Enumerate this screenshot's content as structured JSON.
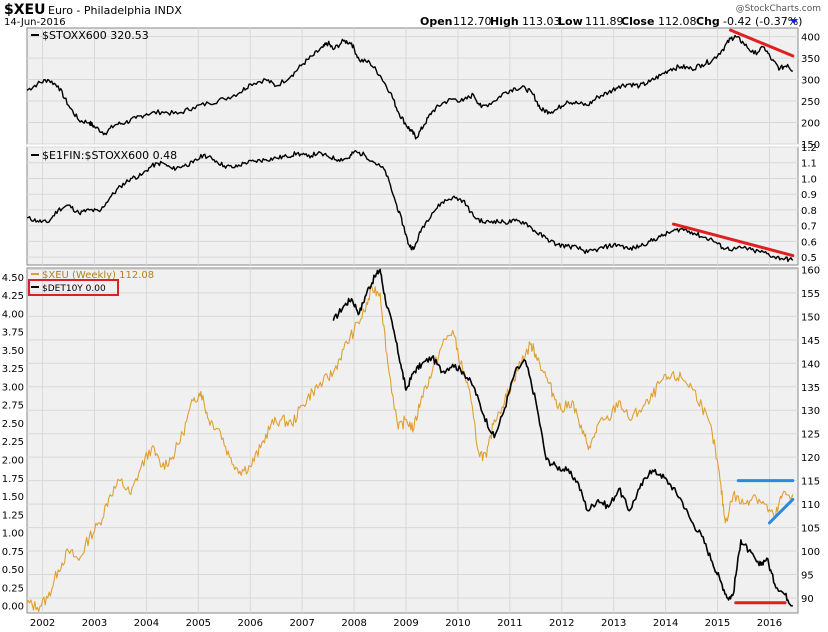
{
  "header": {
    "symbol": "$XEU",
    "name": "Euro - Philadelphia INDX",
    "date": "14-Jun-2016",
    "watermark": "@StockCharts.com",
    "open_label": "Open",
    "open": "112.70",
    "high_label": "High",
    "high": "113.03",
    "low_label": "Low",
    "low": "111.89",
    "close_label": "Close",
    "close": "112.08",
    "chg_label": "Chg",
    "chg": "-0.42 (-0.37%)",
    "chg_color": "#1a1aff"
  },
  "colors": {
    "panel_bg": "#f0f0f0",
    "grid": "#d8d8d8",
    "price_line": "#000000",
    "xeu_line": "#e0a030",
    "red_annotation": "#e02020",
    "blue_annotation": "#2a8ae0"
  },
  "chart_data": [
    {
      "type": "line",
      "panel": "top",
      "series": [
        {
          "name": "$STOXX600 320.53",
          "last": 320.53
        }
      ],
      "ylim": [
        150,
        420
      ],
      "y_ticks": [
        150,
        200,
        250,
        300,
        350,
        400
      ],
      "x_ticks": [
        "2002",
        "2003",
        "2004",
        "2005",
        "2006",
        "2007",
        "2008",
        "2009",
        "2010",
        "2011",
        "2012",
        "2013",
        "2014",
        "2015",
        "2016"
      ],
      "points": [
        [
          2001.7,
          275
        ],
        [
          2001.9,
          290
        ],
        [
          2002.1,
          300
        ],
        [
          2002.3,
          285
        ],
        [
          2002.5,
          240
        ],
        [
          2002.7,
          205
        ],
        [
          2002.9,
          200
        ],
        [
          2003.0,
          190
        ],
        [
          2003.2,
          175
        ],
        [
          2003.4,
          195
        ],
        [
          2003.6,
          200
        ],
        [
          2003.8,
          210
        ],
        [
          2004.0,
          220
        ],
        [
          2004.3,
          225
        ],
        [
          2004.6,
          220
        ],
        [
          2004.9,
          235
        ],
        [
          2005.2,
          245
        ],
        [
          2005.5,
          255
        ],
        [
          2005.8,
          270
        ],
        [
          2006.0,
          290
        ],
        [
          2006.3,
          300
        ],
        [
          2006.5,
          285
        ],
        [
          2006.8,
          310
        ],
        [
          2007.0,
          335
        ],
        [
          2007.2,
          355
        ],
        [
          2007.4,
          375
        ],
        [
          2007.5,
          385
        ],
        [
          2007.6,
          370
        ],
        [
          2007.8,
          390
        ],
        [
          2007.95,
          385
        ],
        [
          2008.1,
          345
        ],
        [
          2008.3,
          340
        ],
        [
          2008.5,
          310
        ],
        [
          2008.7,
          270
        ],
        [
          2008.85,
          225
        ],
        [
          2009.0,
          195
        ],
        [
          2009.1,
          180
        ],
        [
          2009.2,
          165
        ],
        [
          2009.35,
          195
        ],
        [
          2009.5,
          225
        ],
        [
          2009.7,
          245
        ],
        [
          2009.9,
          255
        ],
        [
          2010.1,
          250
        ],
        [
          2010.3,
          265
        ],
        [
          2010.45,
          235
        ],
        [
          2010.7,
          250
        ],
        [
          2010.9,
          270
        ],
        [
          2011.1,
          280
        ],
        [
          2011.3,
          280
        ],
        [
          2011.45,
          265
        ],
        [
          2011.6,
          230
        ],
        [
          2011.75,
          225
        ],
        [
          2011.9,
          230
        ],
        [
          2012.1,
          250
        ],
        [
          2012.3,
          245
        ],
        [
          2012.5,
          240
        ],
        [
          2012.7,
          260
        ],
        [
          2012.9,
          270
        ],
        [
          2013.1,
          285
        ],
        [
          2013.3,
          290
        ],
        [
          2013.5,
          285
        ],
        [
          2013.7,
          295
        ],
        [
          2013.9,
          310
        ],
        [
          2014.1,
          325
        ],
        [
          2014.3,
          330
        ],
        [
          2014.5,
          325
        ],
        [
          2014.7,
          335
        ],
        [
          2014.9,
          345
        ],
        [
          2015.1,
          370
        ],
        [
          2015.25,
          395
        ],
        [
          2015.35,
          400
        ],
        [
          2015.5,
          385
        ],
        [
          2015.7,
          360
        ],
        [
          2015.9,
          375
        ],
        [
          2016.05,
          345
        ],
        [
          2016.2,
          325
        ],
        [
          2016.35,
          335
        ],
        [
          2016.45,
          320.53
        ]
      ]
    },
    {
      "type": "line",
      "panel": "middle",
      "series": [
        {
          "name": "$E1FIN:$STOXX600 0.48",
          "last": 0.48
        }
      ],
      "ylim": [
        0.45,
        1.2
      ],
      "y_ticks": [
        0.5,
        0.6,
        0.7,
        0.8,
        0.9,
        1.0,
        1.1,
        1.2
      ],
      "points": [
        [
          2001.7,
          0.75
        ],
        [
          2001.9,
          0.73
        ],
        [
          2002.1,
          0.72
        ],
        [
          2002.3,
          0.8
        ],
        [
          2002.5,
          0.83
        ],
        [
          2002.7,
          0.78
        ],
        [
          2002.9,
          0.8
        ],
        [
          2003.1,
          0.79
        ],
        [
          2003.3,
          0.88
        ],
        [
          2003.5,
          0.95
        ],
        [
          2003.7,
          1.0
        ],
        [
          2003.9,
          1.02
        ],
        [
          2004.1,
          1.08
        ],
        [
          2004.3,
          1.1
        ],
        [
          2004.5,
          1.06
        ],
        [
          2004.7,
          1.08
        ],
        [
          2004.9,
          1.1
        ],
        [
          2005.1,
          1.15
        ],
        [
          2005.3,
          1.12
        ],
        [
          2005.5,
          1.08
        ],
        [
          2005.7,
          1.07
        ],
        [
          2005.9,
          1.1
        ],
        [
          2006.1,
          1.11
        ],
        [
          2006.3,
          1.12
        ],
        [
          2006.5,
          1.13
        ],
        [
          2006.7,
          1.14
        ],
        [
          2006.9,
          1.16
        ],
        [
          2007.1,
          1.14
        ],
        [
          2007.3,
          1.16
        ],
        [
          2007.5,
          1.14
        ],
        [
          2007.7,
          1.12
        ],
        [
          2007.9,
          1.13
        ],
        [
          2008.0,
          1.17
        ],
        [
          2008.2,
          1.15
        ],
        [
          2008.4,
          1.1
        ],
        [
          2008.6,
          1.05
        ],
        [
          2008.8,
          0.85
        ],
        [
          2008.95,
          0.7
        ],
        [
          2009.05,
          0.58
        ],
        [
          2009.15,
          0.55
        ],
        [
          2009.3,
          0.68
        ],
        [
          2009.5,
          0.78
        ],
        [
          2009.7,
          0.85
        ],
        [
          2009.9,
          0.88
        ],
        [
          2010.1,
          0.86
        ],
        [
          2010.3,
          0.76
        ],
        [
          2010.5,
          0.72
        ],
        [
          2010.7,
          0.73
        ],
        [
          2010.9,
          0.72
        ],
        [
          2011.1,
          0.73
        ],
        [
          2011.3,
          0.72
        ],
        [
          2011.5,
          0.66
        ],
        [
          2011.7,
          0.62
        ],
        [
          2011.9,
          0.58
        ],
        [
          2012.1,
          0.57
        ],
        [
          2012.3,
          0.56
        ],
        [
          2012.5,
          0.53
        ],
        [
          2012.7,
          0.55
        ],
        [
          2012.9,
          0.57
        ],
        [
          2013.1,
          0.58
        ],
        [
          2013.3,
          0.55
        ],
        [
          2013.5,
          0.57
        ],
        [
          2013.7,
          0.6
        ],
        [
          2013.9,
          0.63
        ],
        [
          2014.1,
          0.66
        ],
        [
          2014.3,
          0.68
        ],
        [
          2014.5,
          0.66
        ],
        [
          2014.7,
          0.63
        ],
        [
          2014.9,
          0.61
        ],
        [
          2015.1,
          0.56
        ],
        [
          2015.3,
          0.55
        ],
        [
          2015.5,
          0.56
        ],
        [
          2015.7,
          0.54
        ],
        [
          2015.9,
          0.53
        ],
        [
          2016.1,
          0.5
        ],
        [
          2016.3,
          0.49
        ],
        [
          2016.45,
          0.48
        ]
      ]
    },
    {
      "type": "line",
      "panel": "bottom",
      "series": [
        {
          "name": "$XEU (Weekly) 112.08",
          "axis": "right",
          "last": 112.08
        },
        {
          "name": "$DET10Y 0.00",
          "axis": "left",
          "last": 0.0
        }
      ],
      "ylim_left": [
        -0.1,
        4.62
      ],
      "ylim_right": [
        86.8,
        160.3
      ],
      "y_ticks_left": [
        "0.00",
        "0.25",
        "0.50",
        "0.75",
        "1.00",
        "1.25",
        "1.50",
        "1.75",
        "2.00",
        "2.25",
        "2.50",
        "2.75",
        "3.00",
        "3.25",
        "3.50",
        "3.75",
        "4.00",
        "4.25",
        "4.50"
      ],
      "y_ticks_right": [
        90,
        95,
        100,
        105,
        110,
        115,
        120,
        125,
        130,
        135,
        140,
        145,
        150,
        155,
        160
      ],
      "xeu_points": [
        [
          2001.7,
          89
        ],
        [
          2001.9,
          88
        ],
        [
          2002.1,
          90
        ],
        [
          2002.3,
          96
        ],
        [
          2002.5,
          100
        ],
        [
          2002.7,
          98
        ],
        [
          2002.9,
          103
        ],
        [
          2003.1,
          106
        ],
        [
          2003.3,
          112
        ],
        [
          2003.5,
          115
        ],
        [
          2003.7,
          112
        ],
        [
          2003.9,
          118
        ],
        [
          2004.1,
          122
        ],
        [
          2004.3,
          118
        ],
        [
          2004.5,
          120
        ],
        [
          2004.7,
          125
        ],
        [
          2004.9,
          132
        ],
        [
          2005.05,
          134
        ],
        [
          2005.2,
          128
        ],
        [
          2005.4,
          126
        ],
        [
          2005.6,
          120
        ],
        [
          2005.8,
          117
        ],
        [
          2006.0,
          118
        ],
        [
          2006.2,
          122
        ],
        [
          2006.4,
          127
        ],
        [
          2006.6,
          128
        ],
        [
          2006.8,
          127
        ],
        [
          2007.0,
          131
        ],
        [
          2007.2,
          134
        ],
        [
          2007.4,
          136
        ],
        [
          2007.6,
          138
        ],
        [
          2007.8,
          143
        ],
        [
          2008.0,
          147
        ],
        [
          2008.2,
          151
        ],
        [
          2008.35,
          156
        ],
        [
          2008.5,
          155
        ],
        [
          2008.65,
          140
        ],
        [
          2008.85,
          126
        ],
        [
          2009.0,
          128
        ],
        [
          2009.15,
          126
        ],
        [
          2009.3,
          133
        ],
        [
          2009.5,
          138
        ],
        [
          2009.7,
          144
        ],
        [
          2009.9,
          147
        ],
        [
          2010.05,
          140
        ],
        [
          2010.2,
          135
        ],
        [
          2010.4,
          121
        ],
        [
          2010.55,
          120
        ],
        [
          2010.7,
          128
        ],
        [
          2010.9,
          132
        ],
        [
          2011.05,
          136
        ],
        [
          2011.2,
          140
        ],
        [
          2011.4,
          144
        ],
        [
          2011.5,
          142
        ],
        [
          2011.7,
          137
        ],
        [
          2011.85,
          133
        ],
        [
          2012.0,
          130
        ],
        [
          2012.2,
          132
        ],
        [
          2012.4,
          125
        ],
        [
          2012.55,
          122
        ],
        [
          2012.7,
          127
        ],
        [
          2012.9,
          128
        ],
        [
          2013.1,
          132
        ],
        [
          2013.3,
          128
        ],
        [
          2013.5,
          130
        ],
        [
          2013.7,
          132
        ],
        [
          2013.9,
          136
        ],
        [
          2014.1,
          137
        ],
        [
          2014.3,
          137
        ],
        [
          2014.5,
          135
        ],
        [
          2014.7,
          131
        ],
        [
          2014.9,
          125
        ],
        [
          2015.05,
          115
        ],
        [
          2015.15,
          106
        ],
        [
          2015.3,
          112
        ],
        [
          2015.5,
          110
        ],
        [
          2015.7,
          112
        ],
        [
          2015.9,
          110
        ],
        [
          2016.1,
          107
        ],
        [
          2016.25,
          112
        ],
        [
          2016.45,
          112.08
        ]
      ],
      "det10y_points": [
        [
          2007.6,
          3.9
        ],
        [
          2007.8,
          4.1
        ],
        [
          2007.95,
          4.2
        ],
        [
          2008.1,
          4.0
        ],
        [
          2008.25,
          4.3
        ],
        [
          2008.4,
          4.5
        ],
        [
          2008.5,
          4.6
        ],
        [
          2008.6,
          4.2
        ],
        [
          2008.75,
          3.8
        ],
        [
          2008.9,
          3.3
        ],
        [
          2009.0,
          2.95
        ],
        [
          2009.15,
          3.2
        ],
        [
          2009.3,
          3.3
        ],
        [
          2009.5,
          3.4
        ],
        [
          2009.7,
          3.2
        ],
        [
          2009.9,
          3.3
        ],
        [
          2010.1,
          3.2
        ],
        [
          2010.3,
          3.0
        ],
        [
          2010.5,
          2.6
        ],
        [
          2010.7,
          2.3
        ],
        [
          2010.9,
          2.7
        ],
        [
          2011.1,
          3.2
        ],
        [
          2011.3,
          3.35
        ],
        [
          2011.5,
          2.8
        ],
        [
          2011.7,
          2.0
        ],
        [
          2011.9,
          1.9
        ],
        [
          2012.1,
          1.85
        ],
        [
          2012.3,
          1.7
        ],
        [
          2012.5,
          1.3
        ],
        [
          2012.7,
          1.45
        ],
        [
          2012.9,
          1.35
        ],
        [
          2013.1,
          1.6
        ],
        [
          2013.3,
          1.3
        ],
        [
          2013.5,
          1.6
        ],
        [
          2013.7,
          1.85
        ],
        [
          2013.9,
          1.8
        ],
        [
          2014.1,
          1.65
        ],
        [
          2014.3,
          1.45
        ],
        [
          2014.5,
          1.15
        ],
        [
          2014.7,
          0.95
        ],
        [
          2014.9,
          0.6
        ],
        [
          2015.05,
          0.35
        ],
        [
          2015.2,
          0.1
        ],
        [
          2015.3,
          0.15
        ],
        [
          2015.45,
          0.9
        ],
        [
          2015.6,
          0.75
        ],
        [
          2015.8,
          0.55
        ],
        [
          2015.95,
          0.65
        ],
        [
          2016.1,
          0.3
        ],
        [
          2016.3,
          0.15
        ],
        [
          2016.45,
          0.0
        ]
      ]
    }
  ],
  "annotations": {
    "top_red_from": [
      2015.25,
      415
    ],
    "top_red_to": [
      2016.45,
      355
    ],
    "mid_red_from": [
      2014.15,
      0.71
    ],
    "mid_red_to": [
      2016.45,
      0.51
    ],
    "bottom_red_from": [
      2015.35,
      0.04
    ],
    "bottom_red_to": [
      2016.3,
      0.04
    ],
    "blue_flat_from": [
      2015.4,
      115
    ],
    "blue_flat_to": [
      2016.45,
      115
    ],
    "blue_rising_from": [
      2016.0,
      106
    ],
    "blue_rising_to": [
      2016.45,
      111
    ]
  }
}
